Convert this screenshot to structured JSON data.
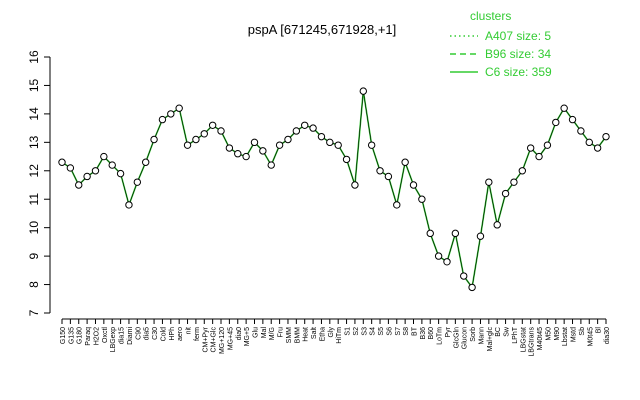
{
  "chart_data": {
    "type": "line",
    "title": "pspA [671245,671928,+1]",
    "xlabel": "",
    "ylabel": "",
    "ylim": [
      7,
      16
    ],
    "yticks": [
      7,
      8,
      9,
      10,
      11,
      12,
      13,
      14,
      15,
      16
    ],
    "legend": {
      "title": "clusters",
      "placement": "top-right",
      "entries": [
        {
          "label": "A407 size: 5",
          "style": "dotted"
        },
        {
          "label": "B96 size: 34",
          "style": "dashed"
        },
        {
          "label": "C6 size: 359",
          "style": "solid"
        }
      ]
    },
    "colors": {
      "series": "#33cc33",
      "points": "#000000",
      "axis": "#000000"
    },
    "x_tick_labels": [
      "G150",
      "G135",
      "G180",
      "Paraq",
      "H2O2",
      "Oxctl",
      "LBGexp",
      "dia15",
      "Diami",
      "C90",
      "dia5",
      "C30",
      "Cold",
      "HPh",
      "aero",
      "nit",
      "ferm",
      "CM+Pyr",
      "CM+Glc",
      "MG+120",
      "MG+45",
      "dia0",
      "MG+5",
      "Glu",
      "Mal",
      "M/G",
      "Fru",
      "SMM",
      "BMM",
      "Heat",
      "Salt",
      "Etha",
      "Gly",
      "HiTm",
      "S1",
      "S2",
      "S3",
      "S4",
      "S5",
      "S6",
      "S7",
      "S8",
      "BT",
      "B36",
      "B60",
      "LoTm",
      "Pyr",
      "GlcGln",
      "Glucon",
      "Sorb",
      "Mann",
      "Mal+glc",
      "BC",
      "Sw",
      "LPhT",
      "LBGstat",
      "LBGtrans",
      "M40t45",
      "M50",
      "M90",
      "Lbstat",
      "Mstd",
      "Sb",
      "M0t45",
      "Bl",
      "dia30"
    ],
    "series": [
      {
        "name": "pspA",
        "values": [
          12.3,
          12.1,
          11.5,
          11.8,
          12.0,
          12.5,
          12.2,
          11.9,
          10.8,
          11.6,
          12.3,
          13.1,
          13.8,
          14.0,
          14.2,
          12.9,
          13.1,
          13.3,
          13.6,
          13.4,
          12.8,
          12.6,
          12.5,
          13.0,
          12.7,
          12.2,
          12.9,
          13.1,
          13.4,
          13.6,
          13.5,
          13.2,
          13.0,
          12.9,
          12.4,
          11.5,
          14.8,
          12.9,
          12.0,
          11.8,
          10.8,
          12.3,
          11.5,
          11.0,
          9.8,
          9.0,
          8.8,
          9.8,
          8.3,
          7.9,
          9.7,
          11.6,
          10.1,
          11.2,
          11.6,
          12.0,
          12.8,
          12.5,
          12.9,
          13.7,
          14.2,
          13.8,
          13.4,
          13.0,
          12.8,
          13.2
        ]
      }
    ]
  }
}
